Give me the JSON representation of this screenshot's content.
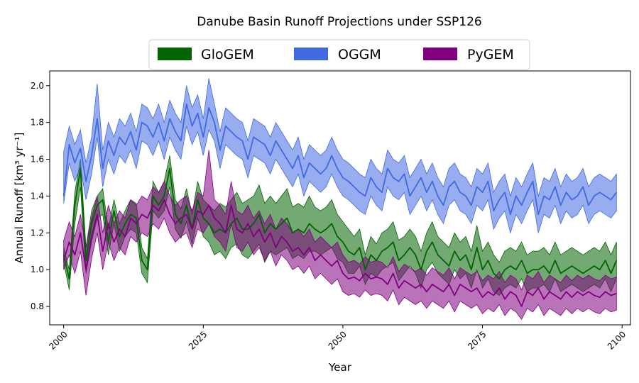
{
  "chart_data": {
    "type": "line",
    "title": "Danube Basin Runoff Projections under SSP126",
    "xlabel": "Year",
    "ylabel": "Annual Runoff [km³ yr⁻¹]",
    "xlim": [
      1997.5,
      2101.5
    ],
    "ylim": [
      0.7,
      2.08
    ],
    "xticks": [
      2000,
      2025,
      2050,
      2075,
      2100
    ],
    "yticks": [
      0.8,
      1.0,
      1.2,
      1.4,
      1.6,
      1.8,
      2.0
    ],
    "ytick_labels": [
      "0.8",
      "1.0",
      "1.2",
      "1.4",
      "1.6",
      "1.8",
      "2.0"
    ],
    "legend_position": "top-center",
    "grid": false,
    "series": [
      {
        "name": "GloGEM",
        "color": "#006400",
        "x_start": 2000,
        "x_step": 1,
        "values": [
          1.08,
          0.95,
          1.35,
          1.55,
          1.05,
          1.25,
          1.35,
          1.38,
          1.15,
          1.32,
          1.18,
          1.25,
          1.3,
          1.28,
          1.05,
          1.0,
          1.4,
          1.35,
          1.4,
          1.55,
          1.3,
          1.25,
          1.35,
          1.22,
          1.38,
          1.28,
          1.25,
          1.2,
          1.22,
          1.2,
          1.25,
          1.28,
          1.22,
          1.22,
          1.25,
          1.3,
          1.2,
          1.25,
          1.22,
          1.25,
          1.28,
          1.2,
          1.22,
          1.2,
          1.25,
          1.22,
          1.2,
          1.22,
          1.25,
          1.18,
          1.15,
          1.1,
          1.08,
          1.12,
          1.0,
          1.08,
          1.05,
          1.1,
          1.12,
          1.15,
          1.05,
          1.08,
          1.12,
          1.08,
          1.0,
          1.1,
          1.15,
          1.08,
          1.05,
          1.02,
          1.1,
          1.05,
          1.08,
          1.0,
          1.12,
          1.0,
          1.05,
          0.98,
          0.95,
          1.0,
          1.02,
          1.0,
          1.05,
          0.98,
          1.0,
          1.0,
          1.02,
          0.98,
          1.05,
          0.98,
          1.0,
          1.02,
          1.0,
          0.98,
          1.0,
          1.02,
          1.0,
          1.05,
          0.98,
          1.05
        ],
        "lower": [
          1.04,
          0.89,
          1.25,
          1.45,
          0.98,
          1.15,
          1.28,
          1.3,
          1.08,
          1.25,
          1.1,
          1.18,
          1.22,
          1.2,
          0.98,
          0.93,
          1.32,
          1.28,
          1.32,
          1.45,
          1.22,
          1.17,
          1.26,
          1.14,
          1.28,
          1.18,
          1.15,
          1.08,
          1.1,
          1.06,
          1.12,
          1.14,
          1.08,
          1.06,
          1.1,
          1.14,
          1.04,
          1.1,
          1.08,
          1.1,
          1.12,
          1.06,
          1.08,
          1.06,
          1.1,
          1.1,
          1.08,
          1.1,
          1.12,
          1.06,
          1.04,
          0.98,
          0.98,
          1.02,
          0.92,
          0.98,
          0.96,
          1.0,
          1.02,
          1.04,
          0.94,
          0.98,
          1.02,
          0.98,
          0.9,
          1.0,
          1.04,
          0.98,
          0.95,
          0.92,
          1.0,
          0.95,
          0.98,
          0.9,
          1.0,
          0.9,
          0.95,
          0.88,
          0.86,
          0.9,
          0.92,
          0.9,
          0.95,
          0.88,
          0.9,
          0.9,
          0.92,
          0.88,
          0.95,
          0.88,
          0.9,
          0.92,
          0.9,
          0.88,
          0.9,
          0.92,
          0.9,
          0.95,
          0.88,
          0.95
        ],
        "upper": [
          1.12,
          1.0,
          1.42,
          1.6,
          1.12,
          1.32,
          1.4,
          1.44,
          1.22,
          1.38,
          1.25,
          1.32,
          1.38,
          1.36,
          1.12,
          1.06,
          1.48,
          1.42,
          1.48,
          1.62,
          1.38,
          1.33,
          1.44,
          1.3,
          1.48,
          1.38,
          1.35,
          1.32,
          1.36,
          1.34,
          1.38,
          1.42,
          1.36,
          1.38,
          1.4,
          1.46,
          1.36,
          1.4,
          1.36,
          1.4,
          1.44,
          1.34,
          1.36,
          1.34,
          1.4,
          1.34,
          1.32,
          1.34,
          1.38,
          1.3,
          1.26,
          1.22,
          1.18,
          1.22,
          1.08,
          1.18,
          1.14,
          1.2,
          1.22,
          1.26,
          1.16,
          1.18,
          1.22,
          1.18,
          1.1,
          1.2,
          1.26,
          1.18,
          1.15,
          1.12,
          1.2,
          1.15,
          1.18,
          1.1,
          1.24,
          1.1,
          1.15,
          1.08,
          1.04,
          1.1,
          1.12,
          1.1,
          1.15,
          1.08,
          1.1,
          1.1,
          1.12,
          1.08,
          1.15,
          1.08,
          1.1,
          1.12,
          1.1,
          1.08,
          1.1,
          1.12,
          1.1,
          1.15,
          1.08,
          1.15
        ]
      },
      {
        "name": "OGGM",
        "color": "#4169e1",
        "x_start": 2000,
        "x_step": 1,
        "values": [
          1.4,
          1.68,
          1.58,
          1.66,
          1.48,
          1.62,
          1.82,
          1.55,
          1.7,
          1.62,
          1.72,
          1.68,
          1.75,
          1.65,
          1.8,
          1.78,
          1.72,
          1.8,
          1.7,
          1.82,
          1.75,
          1.7,
          1.9,
          1.78,
          1.85,
          1.72,
          1.88,
          1.8,
          1.65,
          1.78,
          1.75,
          1.72,
          1.7,
          1.6,
          1.72,
          1.7,
          1.68,
          1.62,
          1.7,
          1.65,
          1.6,
          1.55,
          1.62,
          1.5,
          1.58,
          1.55,
          1.52,
          1.55,
          1.62,
          1.55,
          1.5,
          1.48,
          1.45,
          1.42,
          1.4,
          1.5,
          1.45,
          1.42,
          1.55,
          1.5,
          1.48,
          1.52,
          1.4,
          1.45,
          1.5,
          1.42,
          1.48,
          1.4,
          1.35,
          1.45,
          1.48,
          1.42,
          1.4,
          1.35,
          1.45,
          1.42,
          1.48,
          1.32,
          1.38,
          1.42,
          1.3,
          1.4,
          1.35,
          1.42,
          1.48,
          1.3,
          1.4,
          1.38,
          1.45,
          1.35,
          1.42,
          1.38,
          1.4,
          1.45,
          1.35,
          1.4,
          1.42,
          1.4,
          1.38,
          1.42
        ],
        "lower": [
          1.36,
          1.58,
          1.48,
          1.56,
          1.38,
          1.52,
          1.72,
          1.45,
          1.6,
          1.52,
          1.62,
          1.58,
          1.65,
          1.55,
          1.7,
          1.68,
          1.62,
          1.7,
          1.6,
          1.72,
          1.65,
          1.6,
          1.78,
          1.68,
          1.75,
          1.62,
          1.76,
          1.7,
          1.55,
          1.68,
          1.65,
          1.62,
          1.6,
          1.5,
          1.62,
          1.6,
          1.58,
          1.52,
          1.6,
          1.55,
          1.5,
          1.45,
          1.52,
          1.4,
          1.48,
          1.45,
          1.42,
          1.45,
          1.52,
          1.45,
          1.4,
          1.38,
          1.35,
          1.32,
          1.3,
          1.4,
          1.35,
          1.32,
          1.45,
          1.4,
          1.38,
          1.42,
          1.3,
          1.35,
          1.4,
          1.32,
          1.38,
          1.3,
          1.25,
          1.35,
          1.38,
          1.32,
          1.3,
          1.25,
          1.35,
          1.32,
          1.38,
          1.22,
          1.28,
          1.32,
          1.2,
          1.3,
          1.25,
          1.32,
          1.38,
          1.2,
          1.3,
          1.28,
          1.35,
          1.25,
          1.32,
          1.28,
          1.3,
          1.35,
          1.25,
          1.3,
          1.32,
          1.3,
          1.28,
          1.32
        ],
        "upper": [
          1.64,
          1.78,
          1.68,
          1.76,
          1.58,
          1.72,
          2.01,
          1.65,
          1.8,
          1.72,
          1.82,
          1.78,
          1.85,
          1.75,
          1.9,
          1.88,
          1.82,
          1.9,
          1.8,
          1.92,
          1.85,
          1.8,
          2.0,
          1.88,
          1.95,
          1.82,
          2.04,
          1.9,
          1.75,
          1.88,
          1.85,
          1.82,
          1.8,
          1.7,
          1.82,
          1.8,
          1.78,
          1.72,
          1.8,
          1.75,
          1.7,
          1.65,
          1.72,
          1.6,
          1.68,
          1.65,
          1.62,
          1.65,
          1.72,
          1.65,
          1.6,
          1.58,
          1.55,
          1.52,
          1.5,
          1.6,
          1.55,
          1.52,
          1.65,
          1.6,
          1.58,
          1.62,
          1.5,
          1.55,
          1.6,
          1.52,
          1.58,
          1.5,
          1.45,
          1.55,
          1.58,
          1.52,
          1.5,
          1.45,
          1.55,
          1.52,
          1.58,
          1.42,
          1.48,
          1.52,
          1.4,
          1.5,
          1.45,
          1.52,
          1.58,
          1.4,
          1.5,
          1.48,
          1.55,
          1.45,
          1.52,
          1.48,
          1.5,
          1.55,
          1.45,
          1.5,
          1.52,
          1.5,
          1.48,
          1.52
        ]
      },
      {
        "name": "PyGEM",
        "color": "#800080",
        "x_start": 2000,
        "x_step": 1,
        "values": [
          1.05,
          1.15,
          1.08,
          1.2,
          1.0,
          1.18,
          1.3,
          1.1,
          1.25,
          1.15,
          1.22,
          1.18,
          1.28,
          1.25,
          1.3,
          1.28,
          1.35,
          1.32,
          1.38,
          1.3,
          1.25,
          1.28,
          1.3,
          1.22,
          1.32,
          1.3,
          1.35,
          1.28,
          1.25,
          1.2,
          1.35,
          1.22,
          1.2,
          1.25,
          1.18,
          1.22,
          1.15,
          1.2,
          1.12,
          1.18,
          1.15,
          1.1,
          1.12,
          1.08,
          1.12,
          1.05,
          1.08,
          1.05,
          1.02,
          1.05,
          0.98,
          0.95,
          0.96,
          0.94,
          0.98,
          0.95,
          0.96,
          0.95,
          0.92,
          0.98,
          0.9,
          0.94,
          0.92,
          0.9,
          0.92,
          0.88,
          0.92,
          0.9,
          0.88,
          0.92,
          0.86,
          0.92,
          0.9,
          0.88,
          0.9,
          0.85,
          0.88,
          0.86,
          0.9,
          0.84,
          0.88,
          0.86,
          0.8,
          0.88,
          0.86,
          0.9,
          0.84,
          0.88,
          0.86,
          0.84,
          0.88,
          0.85,
          0.88,
          0.86,
          0.88,
          0.86,
          0.85,
          0.88,
          0.86,
          0.87
        ],
        "lower": [
          1.0,
          1.08,
          0.98,
          1.1,
          0.86,
          1.06,
          1.2,
          1.0,
          1.15,
          1.05,
          1.12,
          1.08,
          1.18,
          1.15,
          1.2,
          1.18,
          1.25,
          1.22,
          1.28,
          1.2,
          1.15,
          1.18,
          1.2,
          1.12,
          1.22,
          1.2,
          1.25,
          1.18,
          1.15,
          1.1,
          1.25,
          1.12,
          1.1,
          1.15,
          1.08,
          1.12,
          1.05,
          1.1,
          1.02,
          1.08,
          1.05,
          1.0,
          1.02,
          0.98,
          1.02,
          0.95,
          0.98,
          0.95,
          0.92,
          0.95,
          0.88,
          0.86,
          0.87,
          0.85,
          0.89,
          0.86,
          0.87,
          0.86,
          0.83,
          0.89,
          0.81,
          0.85,
          0.83,
          0.81,
          0.83,
          0.79,
          0.83,
          0.81,
          0.79,
          0.83,
          0.77,
          0.83,
          0.81,
          0.79,
          0.81,
          0.76,
          0.79,
          0.77,
          0.81,
          0.75,
          0.79,
          0.77,
          0.73,
          0.79,
          0.77,
          0.81,
          0.75,
          0.79,
          0.77,
          0.75,
          0.79,
          0.76,
          0.79,
          0.77,
          0.79,
          0.77,
          0.76,
          0.79,
          0.77,
          0.78
        ],
        "upper": [
          1.16,
          1.26,
          1.18,
          1.3,
          1.12,
          1.28,
          1.4,
          1.2,
          1.35,
          1.25,
          1.32,
          1.28,
          1.38,
          1.35,
          1.4,
          1.38,
          1.45,
          1.42,
          1.48,
          1.4,
          1.35,
          1.38,
          1.4,
          1.32,
          1.42,
          1.4,
          1.65,
          1.38,
          1.35,
          1.3,
          1.48,
          1.32,
          1.3,
          1.35,
          1.28,
          1.32,
          1.25,
          1.3,
          1.22,
          1.28,
          1.25,
          1.2,
          1.22,
          1.18,
          1.22,
          1.15,
          1.18,
          1.15,
          1.12,
          1.15,
          1.08,
          1.04,
          1.05,
          1.03,
          1.07,
          1.04,
          1.05,
          1.04,
          1.01,
          1.07,
          0.99,
          1.03,
          1.01,
          0.99,
          1.01,
          0.97,
          1.01,
          0.99,
          0.97,
          1.01,
          0.95,
          1.01,
          0.99,
          0.97,
          0.99,
          0.94,
          0.97,
          0.95,
          0.99,
          0.93,
          0.97,
          0.95,
          0.89,
          0.97,
          0.95,
          0.99,
          0.93,
          0.97,
          0.95,
          0.93,
          0.97,
          0.94,
          0.97,
          0.95,
          0.97,
          0.95,
          0.94,
          0.97,
          0.95,
          0.96
        ]
      }
    ]
  }
}
